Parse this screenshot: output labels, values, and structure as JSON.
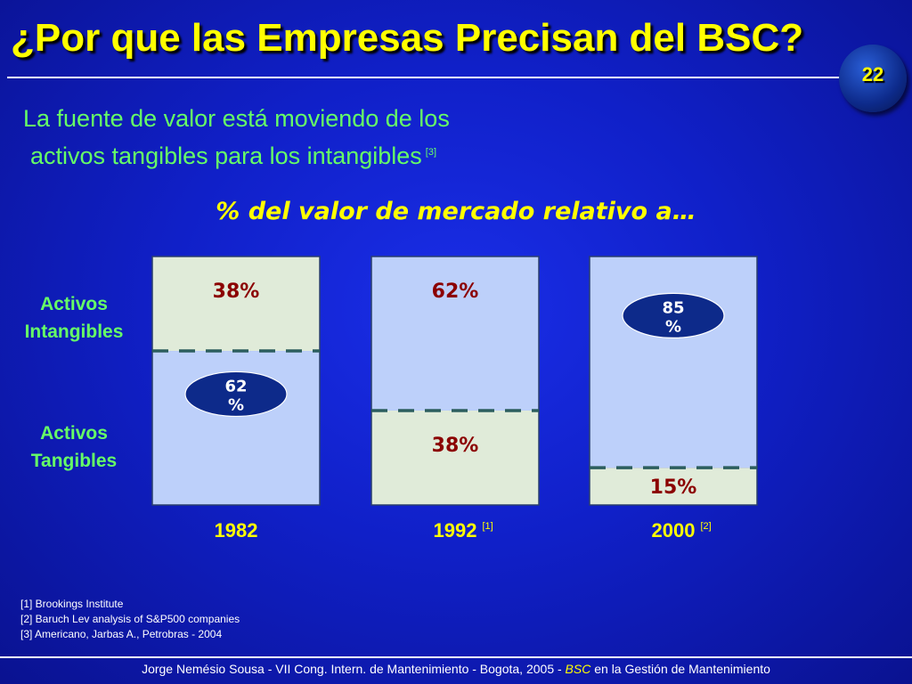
{
  "title": "¿Por que las Empresas Precisan del BSC?",
  "page_number": "22",
  "subtitle": {
    "line1": "La fuente de valor está moviendo de los",
    "line2": "activos tangibles para los intangibles",
    "ref": "[3]"
  },
  "colors": {
    "intangible_fill": "#bdd0fa",
    "tangible_fill": "#e0ebd9",
    "value_label": "#8b0000",
    "divider": "#2c5e5e",
    "oval_fill": "#0d2a8a",
    "year_label": "#ffff00"
  },
  "chart_data": {
    "type": "bar",
    "title": "% del valor de mercado relativo a…",
    "row_labels": [
      "Activos Intangibles",
      "Activos Tangibles"
    ],
    "categories": [
      "1982",
      "1992",
      "2000"
    ],
    "category_refs": [
      "",
      "[1]",
      "[2]"
    ],
    "series": [
      {
        "name": "Activos Intangibles",
        "values": [
          38,
          62,
          85
        ]
      },
      {
        "name": "Activos Tangibles",
        "values": [
          62,
          38,
          15
        ]
      }
    ],
    "highlight": [
      {
        "category": "1982",
        "series": "Activos Tangibles",
        "line1": "62",
        "line2": "%"
      },
      {
        "category": "2000",
        "series": "Activos Intangibles",
        "line1": "85",
        "line2": "%"
      }
    ],
    "value_suffix": "%",
    "ylim": [
      0,
      100
    ]
  },
  "footnotes": [
    "[1] Brookings Institute",
    "[2] Baruch Lev analysis of S&P500 companies",
    "[3] Americano, Jarbas A., Petrobras - 2004"
  ],
  "footer": {
    "prefix": "Jorge Nemésio Sousa - VII Cong. Intern. de Mantenimiento - Bogota, 2005 - ",
    "bsc": "BSC",
    "suffix": " en la Gestión de Mantenimiento"
  }
}
